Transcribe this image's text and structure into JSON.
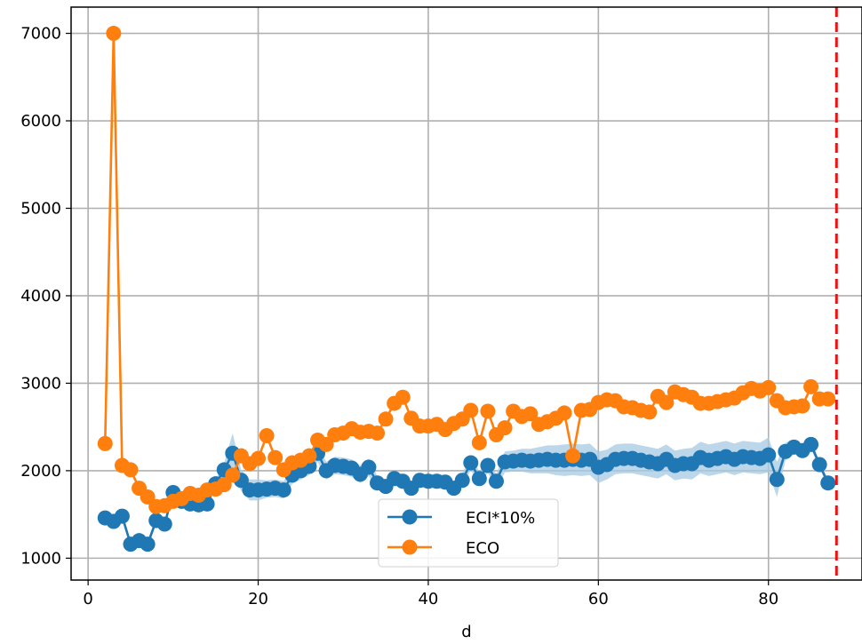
{
  "chart_data": {
    "type": "line",
    "title": "",
    "xlabel": "d",
    "ylabel": "",
    "xlim": [
      -2,
      91
    ],
    "ylim": [
      750,
      7300
    ],
    "xticks": [
      0,
      20,
      40,
      60,
      80
    ],
    "yticks": [
      1000,
      2000,
      3000,
      4000,
      5000,
      6000,
      7000
    ],
    "grid": true,
    "legend_position": "lower center",
    "vline": {
      "x": 88,
      "color": "#ee1111",
      "style": "dashed"
    },
    "series": [
      {
        "name": "ECI*10%",
        "color": "#1f77b4",
        "band_color": "#a6c8e3",
        "x": [
          2,
          3,
          4,
          5,
          6,
          7,
          8,
          9,
          10,
          11,
          12,
          13,
          14,
          15,
          16,
          17,
          18,
          19,
          20,
          21,
          22,
          23,
          24,
          25,
          26,
          27,
          28,
          29,
          30,
          31,
          32,
          33,
          34,
          35,
          36,
          37,
          38,
          39,
          40,
          41,
          42,
          43,
          44,
          45,
          46,
          47,
          48,
          49,
          50,
          51,
          52,
          53,
          54,
          55,
          56,
          57,
          58,
          59,
          60,
          61,
          62,
          63,
          64,
          65,
          66,
          67,
          68,
          69,
          70,
          71,
          72,
          73,
          74,
          75,
          76,
          77,
          78,
          79,
          80,
          81,
          82,
          83,
          84,
          85,
          86,
          87
        ],
        "values": [
          1460,
          1420,
          1480,
          1160,
          1200,
          1160,
          1430,
          1390,
          1750,
          1650,
          1620,
          1610,
          1620,
          1850,
          2010,
          2200,
          1890,
          1780,
          1780,
          1790,
          1800,
          1780,
          1950,
          2000,
          2050,
          2200,
          2000,
          2060,
          2050,
          2030,
          1960,
          2040,
          1860,
          1820,
          1910,
          1880,
          1800,
          1890,
          1880,
          1880,
          1870,
          1800,
          1890,
          2090,
          1910,
          2060,
          1880,
          2100,
          2110,
          2120,
          2110,
          2120,
          2130,
          2120,
          2120,
          2130,
          2120,
          2130,
          2040,
          2070,
          2130,
          2140,
          2140,
          2120,
          2100,
          2080,
          2130,
          2060,
          2080,
          2080,
          2150,
          2120,
          2140,
          2160,
          2130,
          2160,
          2150,
          2140,
          2180,
          1900,
          2220,
          2270,
          2230,
          2300,
          2070,
          1860
        ],
        "band_half_width": [
          40,
          40,
          40,
          40,
          40,
          40,
          40,
          40,
          40,
          40,
          40,
          40,
          40,
          50,
          80,
          230,
          120,
          120,
          120,
          100,
          100,
          100,
          100,
          100,
          100,
          100,
          100,
          100,
          100,
          100,
          100,
          100,
          80,
          80,
          80,
          80,
          80,
          80,
          80,
          80,
          80,
          80,
          80,
          80,
          80,
          80,
          80,
          120,
          120,
          130,
          140,
          150,
          160,
          170,
          180,
          180,
          180,
          180,
          180,
          170,
          170,
          170,
          170,
          170,
          170,
          170,
          170,
          170,
          170,
          180,
          180,
          180,
          180,
          180,
          180,
          180,
          180,
          180,
          200,
          200,
          100,
          80,
          60,
          50,
          40,
          40
        ]
      },
      {
        "name": "ECO",
        "color": "#ff7f0e",
        "x": [
          2,
          3,
          4,
          5,
          6,
          7,
          8,
          9,
          10,
          11,
          12,
          13,
          14,
          15,
          16,
          17,
          18,
          19,
          20,
          21,
          22,
          23,
          24,
          25,
          26,
          27,
          28,
          29,
          30,
          31,
          32,
          33,
          34,
          35,
          36,
          37,
          38,
          39,
          40,
          41,
          42,
          43,
          44,
          45,
          46,
          47,
          48,
          49,
          50,
          51,
          52,
          53,
          54,
          55,
          56,
          57,
          58,
          59,
          60,
          61,
          62,
          63,
          64,
          65,
          66,
          67,
          68,
          69,
          70,
          71,
          72,
          73,
          74,
          75,
          76,
          77,
          78,
          79,
          80,
          81,
          82,
          83,
          84,
          85,
          86,
          87
        ],
        "values": [
          2310,
          7000,
          2060,
          2010,
          1800,
          1700,
          1590,
          1600,
          1650,
          1680,
          1740,
          1720,
          1780,
          1790,
          1840,
          1950,
          2170,
          2080,
          2140,
          2400,
          2150,
          2010,
          2090,
          2120,
          2170,
          2350,
          2300,
          2410,
          2430,
          2480,
          2440,
          2450,
          2430,
          2590,
          2770,
          2840,
          2600,
          2510,
          2510,
          2530,
          2470,
          2540,
          2590,
          2690,
          2320,
          2680,
          2410,
          2490,
          2680,
          2620,
          2650,
          2530,
          2560,
          2600,
          2660,
          2170,
          2690,
          2700,
          2780,
          2810,
          2800,
          2730,
          2720,
          2690,
          2670,
          2850,
          2780,
          2900,
          2870,
          2840,
          2770,
          2770,
          2790,
          2810,
          2830,
          2890,
          2940,
          2910,
          2950,
          2800,
          2720,
          2730,
          2740,
          2960,
          2820,
          2820
        ]
      }
    ]
  }
}
